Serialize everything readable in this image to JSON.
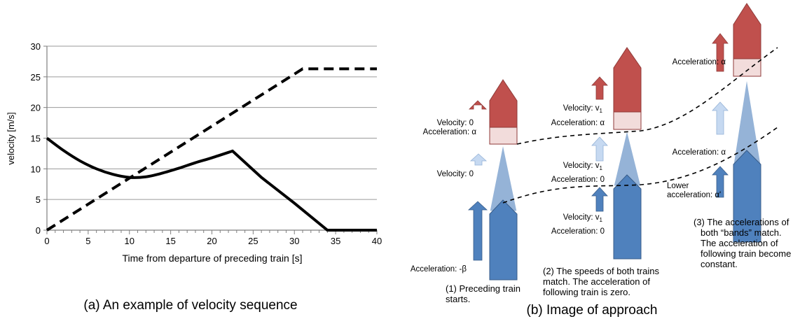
{
  "figure_a": {
    "caption": "(a) An example of velocity sequence",
    "chart_data": {
      "type": "line",
      "xlabel": "Time from departure of preceding train [s]",
      "ylabel": "velocity [m/s]",
      "xlim": [
        0,
        40
      ],
      "ylim": [
        0,
        30
      ],
      "xticks": [
        0,
        5,
        10,
        15,
        20,
        25,
        30,
        35,
        40
      ],
      "yticks": [
        0,
        5,
        10,
        15,
        20,
        25,
        30
      ],
      "grid": "horizontal",
      "series": [
        {
          "style": "dashed",
          "x": [
            0,
            31,
            40
          ],
          "y": [
            0,
            26.3,
            26.3
          ]
        },
        {
          "style": "solid",
          "x": [
            0,
            2,
            4,
            6,
            8,
            10,
            12,
            14,
            16,
            18,
            20,
            22.5,
            26,
            30,
            34,
            40
          ],
          "y": [
            15,
            13.0,
            11.3,
            10.0,
            9.1,
            8.6,
            8.7,
            9.3,
            10.1,
            11.0,
            11.8,
            12.9,
            8.6,
            4.4,
            0,
            0
          ]
        }
      ]
    }
  },
  "figure_b": {
    "caption": "(b) Image of approach",
    "colors": {
      "red": "#c0504d",
      "red_border": "#8f3a38",
      "pink": "#f2dcdb",
      "blue": "#4f81bd",
      "blue_border": "#385d8a",
      "light_blue": "#95b3d7",
      "pale_blue": "#c6d9f1"
    },
    "stage1": {
      "lead_velocity": "Velocity: 0",
      "lead_acceleration": "Acceleration: α",
      "mid_velocity": "Velocity: 0",
      "follow_acceleration": "Acceleration: -β",
      "caption_lines": [
        "(1) Preceding train",
        "starts."
      ]
    },
    "stage2": {
      "lead_velocity": "Velocity: v",
      "lead_velocity_sub": "1",
      "lead_acceleration": "Acceleration: α",
      "mid_velocity": "Velocity: v",
      "mid_velocity_sub": "1",
      "mid_acceleration": "Acceleration: 0",
      "follow_velocity": "Velocity: v",
      "follow_velocity_sub": "1",
      "follow_acceleration": "Acceleration: 0",
      "caption_lines": [
        "(2) The speeds of both trains",
        "match. The acceleration of",
        "following train is zero."
      ]
    },
    "stage3": {
      "lead_acceleration": "Acceleration: α",
      "mid_acceleration": "Acceleration: α",
      "lower_label": "Lower",
      "lower_acceleration": "acceleration: α'",
      "caption_lines": [
        "(3) The accelerations of",
        "both “bands” match.",
        "The acceleration of",
        "following train become",
        "constant."
      ]
    }
  }
}
